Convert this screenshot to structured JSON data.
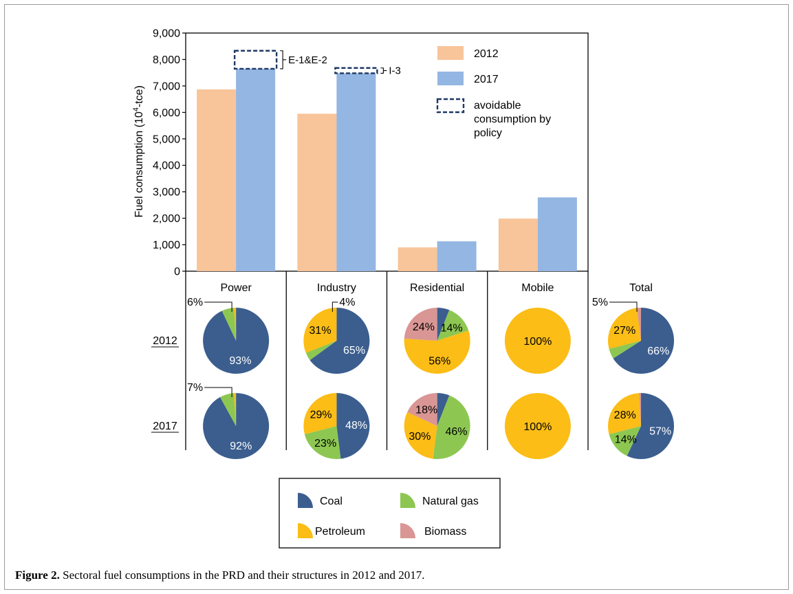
{
  "caption": {
    "label": "Figure 2.",
    "text": "Sectoral fuel consumptions in the PRD and their structures in 2012 and 2017."
  },
  "chart_data": [
    {
      "type": "bar",
      "ylabel_main": "Fuel  consumption (10",
      "ylabel_sup": "4",
      "ylabel_tail": "-tce)",
      "ylim": [
        0,
        9000
      ],
      "yticks": [
        "0",
        "1,000",
        "2,000",
        "3,000",
        "4,000",
        "5,000",
        "6,000",
        "7,000",
        "8,000",
        "9,000"
      ],
      "categories": [
        "Power",
        "Industry",
        "Residential",
        "Mobile"
      ],
      "series": [
        {
          "name": "2012",
          "color": "#f8c499",
          "values": [
            6870,
            5950,
            900,
            1990
          ]
        },
        {
          "name": "2017",
          "color": "#94b6e2",
          "values": [
            7650,
            7480,
            1130,
            2790
          ]
        }
      ],
      "avoidable": [
        {
          "category": "Power",
          "bottom": 7650,
          "top": 8330,
          "label": "E-1&E-2"
        },
        {
          "category": "Industry",
          "bottom": 7480,
          "top": 7680,
          "label": "I-3"
        }
      ],
      "legend_avoidable": "avoidable consumption by policy",
      "legend_avoidable_lines": [
        "avoidable",
        "consumption by",
        "policy"
      ],
      "legend_placement": "top-right",
      "grid": false
    },
    {
      "type": "pie",
      "columns": [
        "Power",
        "Industry",
        "Residential",
        "Mobile",
        "Total"
      ],
      "rows": [
        "2012",
        "2017"
      ],
      "fuels": [
        {
          "name": "Coal",
          "color": "#3b5e8f"
        },
        {
          "name": "Natural gas",
          "color": "#8dc752"
        },
        {
          "name": "Petroleum",
          "color": "#fbbd16"
        },
        {
          "name": "Biomass",
          "color": "#d99694"
        }
      ],
      "pies": [
        {
          "row": "2012",
          "column": "Power",
          "shares": [
            93,
            6,
            1,
            0
          ],
          "labels": [
            "93%",
            "",
            "",
            ""
          ],
          "callout": "6%"
        },
        {
          "row": "2012",
          "column": "Industry",
          "shares": [
            65,
            4,
            31,
            0
          ],
          "labels": [
            "65%",
            "",
            "31%",
            ""
          ],
          "callout": "4%"
        },
        {
          "row": "2012",
          "column": "Residential",
          "shares": [
            6,
            14,
            56,
            24
          ],
          "labels": [
            "",
            "14%",
            "56%",
            "24%"
          ],
          "callout": ""
        },
        {
          "row": "2012",
          "column": "Mobile",
          "shares": [
            0,
            0,
            100,
            0
          ],
          "labels": [
            "",
            "",
            "100%",
            ""
          ],
          "callout": ""
        },
        {
          "row": "2012",
          "column": "Total",
          "shares": [
            66,
            5,
            27,
            2
          ],
          "labels": [
            "66%",
            "",
            "27%",
            ""
          ],
          "callout": "5%"
        },
        {
          "row": "2017",
          "column": "Power",
          "shares": [
            92,
            7,
            1,
            0
          ],
          "labels": [
            "92%",
            "",
            "",
            ""
          ],
          "callout": "7%"
        },
        {
          "row": "2017",
          "column": "Industry",
          "shares": [
            48,
            23,
            29,
            0
          ],
          "labels": [
            "48%",
            "23%",
            "29%",
            ""
          ],
          "callout": ""
        },
        {
          "row": "2017",
          "column": "Residential",
          "shares": [
            6,
            46,
            30,
            18
          ],
          "labels": [
            "",
            "46%",
            "30%",
            "18%"
          ],
          "callout": ""
        },
        {
          "row": "2017",
          "column": "Mobile",
          "shares": [
            0,
            0,
            100,
            0
          ],
          "labels": [
            "",
            "",
            "100%",
            ""
          ],
          "callout": ""
        },
        {
          "row": "2017",
          "column": "Total",
          "shares": [
            57,
            14,
            28,
            1
          ],
          "labels": [
            "57%",
            "14%",
            "28%",
            ""
          ],
          "callout": ""
        }
      ]
    }
  ]
}
